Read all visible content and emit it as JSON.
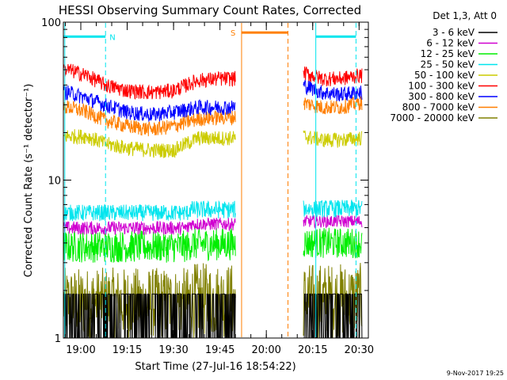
{
  "chart_data": {
    "type": "line",
    "title": "HESSI Observing Summary Count Rates, Corrected",
    "xlabel": "Start Time (27-Jul-16 18:54:22)",
    "ylabel": "Corrected Count Rate (s⁻¹ detector⁻¹)",
    "y_scale": "log",
    "ylim": [
      1,
      100
    ],
    "xlim": [
      "18:54:22",
      "20:33:00"
    ],
    "x_ticks": [
      "19:00",
      "19:15",
      "19:30",
      "19:45",
      "20:00",
      "20:15",
      "20:30"
    ],
    "y_ticks": [
      "1",
      "10",
      "100"
    ],
    "legend_title": "Det 1,3, Att 0",
    "legend_position": "right",
    "footer": "9-Nov-2017 19:25",
    "data_gap": [
      "19:50:00",
      "20:12:00"
    ],
    "annotations": [
      {
        "label": "N",
        "x_start": "18:54:22",
        "x_end": "19:08:00",
        "y": 81,
        "color": "#00e5ee"
      },
      {
        "label": "S",
        "x_start": "19:52:00",
        "x_end": "20:07:00",
        "y": 86,
        "color": "#ff7f00"
      },
      {
        "label": "",
        "x_start": "20:16:00",
        "x_end": "20:29:00",
        "y": 81,
        "color": "#00e5ee"
      }
    ],
    "vlines": [
      {
        "x": "18:54:50",
        "style": "solid",
        "color": "#00e5ee"
      },
      {
        "x": "19:08:00",
        "style": "dashed",
        "color": "#00e5ee"
      },
      {
        "x": "19:52:00",
        "style": "solid",
        "color": "#ff7f00"
      },
      {
        "x": "20:07:00",
        "style": "dashed",
        "color": "#ff7f00"
      },
      {
        "x": "20:16:00",
        "style": "solid",
        "color": "#00e5ee"
      },
      {
        "x": "20:29:00",
        "style": "dashed",
        "color": "#00e5ee"
      }
    ],
    "series": [
      {
        "name": "3 - 6 keV",
        "color": "#000000",
        "kind": "discrete",
        "levels": [
          1.0,
          1.9
        ]
      },
      {
        "name": "6 - 12 keV",
        "color": "#d000d0",
        "kind": "band",
        "values": [
          [
            4.5,
            5.5
          ],
          [
            4.8,
            5.8
          ],
          [
            5.0,
            6.0
          ]
        ]
      },
      {
        "name": "12 - 25 keV",
        "color": "#00ee00",
        "kind": "band",
        "values": [
          [
            3.0,
            4.8
          ],
          [
            3.1,
            5.0
          ],
          [
            3.2,
            5.0
          ]
        ]
      },
      {
        "name": "25 - 50 keV",
        "color": "#00e5ee",
        "kind": "band",
        "values": [
          [
            5.5,
            7.0
          ],
          [
            5.7,
            7.4
          ],
          [
            5.8,
            7.5
          ]
        ]
      },
      {
        "name": "50 - 100 keV",
        "color": "#cccc00",
        "kind": "curve",
        "x": [
          "18:56",
          "19:02",
          "19:08",
          "19:15",
          "19:23",
          "19:30",
          "19:38",
          "19:45",
          "19:49",
          "20:12",
          "20:18",
          "20:24",
          "20:30"
        ],
        "values": [
          19,
          19,
          17,
          16,
          15.5,
          15.5,
          18.5,
          18.5,
          18.5,
          19,
          18,
          18,
          18.5
        ]
      },
      {
        "name": "100 - 300 keV",
        "color": "#ff0000",
        "kind": "curve",
        "x": [
          "18:56",
          "19:02",
          "19:08",
          "19:15",
          "19:23",
          "19:30",
          "19:38",
          "19:45",
          "19:49",
          "20:12",
          "20:18",
          "20:24",
          "20:30"
        ],
        "values": [
          50,
          46,
          40,
          37,
          36,
          37,
          43,
          44,
          44,
          48,
          44,
          44,
          46
        ]
      },
      {
        "name": "300 - 800 keV",
        "color": "#0000ff",
        "kind": "curve",
        "x": [
          "18:56",
          "19:02",
          "19:08",
          "19:15",
          "19:23",
          "19:30",
          "19:38",
          "19:45",
          "19:49",
          "20:12",
          "20:18",
          "20:24",
          "20:30"
        ],
        "values": [
          36,
          33,
          30,
          27,
          26,
          27,
          29,
          29,
          29,
          40,
          36,
          35,
          36
        ]
      },
      {
        "name": "800 - 7000 keV",
        "color": "#ff7f00",
        "kind": "curve",
        "x": [
          "18:56",
          "19:02",
          "19:08",
          "19:15",
          "19:23",
          "19:30",
          "19:38",
          "19:45",
          "19:49",
          "20:12",
          "20:18",
          "20:24",
          "20:30"
        ],
        "values": [
          29,
          27,
          24,
          22,
          21,
          22,
          24.5,
          25,
          25,
          31,
          29,
          29,
          31
        ]
      },
      {
        "name": "7000 - 20000 keV",
        "color": "#808000",
        "kind": "band",
        "values": [
          [
            1.0,
            2.8
          ],
          [
            1.0,
            3.0
          ],
          [
            1.0,
            3.0
          ]
        ]
      }
    ]
  }
}
